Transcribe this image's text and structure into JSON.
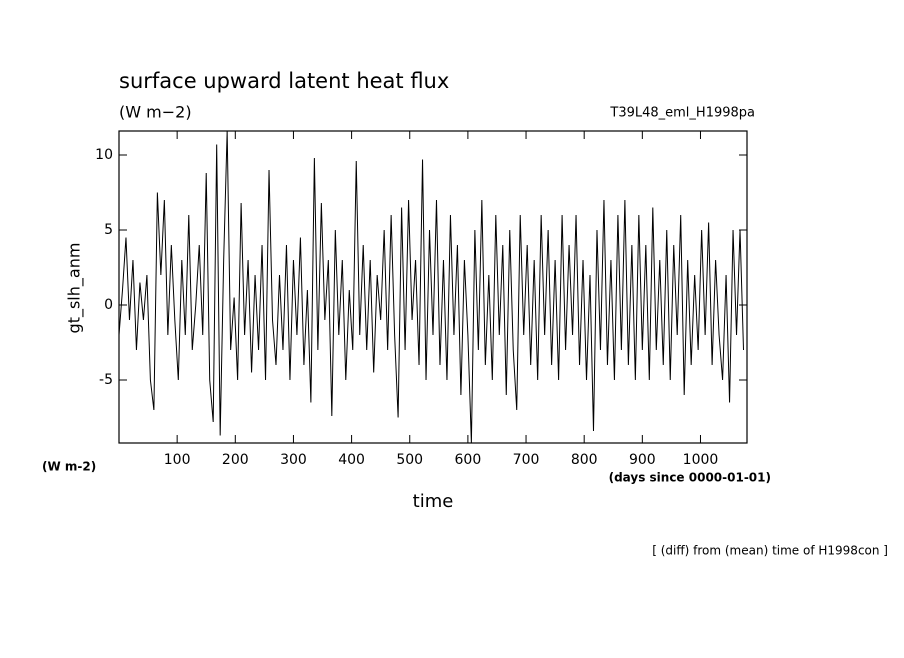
{
  "chart_data": {
    "type": "line",
    "title": "surface upward latent heat flux",
    "subtitle": "(W m−2)",
    "run_label": "T39L48_eml_H1998pa",
    "y_label": "gt_slh_anm",
    "x_label": "time",
    "y_unit": "(W m-2)",
    "x_unit": "(days since 0000-01-01)",
    "note": "[ (diff) from (mean) time of H1998con ]",
    "xlim": [
      0,
      1080
    ],
    "ylim": [
      -9.2,
      11.6
    ],
    "xticks": [
      100,
      200,
      300,
      400,
      500,
      600,
      700,
      800,
      900,
      1000
    ],
    "yticks": [
      -5,
      0,
      5,
      10
    ],
    "color": "#000000",
    "x": [
      0,
      6,
      12,
      18,
      24,
      30,
      36,
      42,
      48,
      54,
      60,
      66,
      72,
      78,
      84,
      90,
      96,
      102,
      108,
      114,
      120,
      126,
      132,
      138,
      144,
      150,
      156,
      162,
      168,
      174,
      180,
      186,
      192,
      198,
      204,
      210,
      216,
      222,
      228,
      234,
      240,
      246,
      252,
      258,
      264,
      270,
      276,
      282,
      288,
      294,
      300,
      306,
      312,
      318,
      324,
      330,
      336,
      342,
      348,
      354,
      360,
      366,
      372,
      378,
      384,
      390,
      396,
      402,
      408,
      414,
      420,
      426,
      432,
      438,
      444,
      450,
      456,
      462,
      468,
      474,
      480,
      486,
      492,
      498,
      504,
      510,
      516,
      522,
      528,
      534,
      540,
      546,
      552,
      558,
      564,
      570,
      576,
      582,
      588,
      594,
      600,
      606,
      612,
      618,
      624,
      630,
      636,
      642,
      648,
      654,
      660,
      666,
      672,
      678,
      684,
      690,
      696,
      702,
      708,
      714,
      720,
      726,
      732,
      738,
      744,
      750,
      756,
      762,
      768,
      774,
      780,
      786,
      792,
      798,
      804,
      810,
      816,
      822,
      828,
      834,
      840,
      846,
      852,
      858,
      864,
      870,
      876,
      882,
      888,
      894,
      900,
      906,
      912,
      918,
      924,
      930,
      936,
      942,
      948,
      954,
      960,
      966,
      972,
      978,
      984,
      990,
      996,
      1002,
      1008,
      1014,
      1020,
      1026,
      1032,
      1038,
      1044,
      1050,
      1056,
      1062,
      1068,
      1074
    ],
    "values": [
      -2,
      1,
      4.5,
      -1,
      3,
      -3,
      1.5,
      -1,
      2,
      -5,
      -7,
      7.5,
      2,
      7,
      -2,
      4,
      -1,
      -5,
      3,
      -2,
      6,
      -3,
      0,
      4,
      -2,
      8.8,
      -5,
      -7.8,
      10.7,
      -8.7,
      3,
      11.6,
      -3,
      0.5,
      -5,
      6.8,
      -2,
      3,
      -4.5,
      2,
      -3,
      4,
      -5,
      9,
      -1,
      -4,
      2,
      -3,
      4,
      -5,
      3,
      -2,
      4.5,
      -4,
      1,
      -6.5,
      9.8,
      -3,
      6.8,
      -1,
      3,
      -7.4,
      5,
      -2,
      3,
      -5,
      1,
      -3,
      9.6,
      -2,
      4,
      -3,
      3,
      -4.5,
      2,
      -1,
      5,
      -3,
      6,
      -2,
      -7.5,
      6.5,
      -3,
      7,
      -1,
      3,
      -4,
      9.7,
      -5,
      5,
      -2,
      7,
      -4,
      3,
      -5,
      6,
      -2,
      4,
      -6,
      3,
      -2,
      -9.2,
      5,
      -3,
      7,
      -4,
      2,
      -5,
      6,
      -2,
      4,
      -6,
      5,
      -3,
      -7,
      6,
      -2,
      4,
      -4,
      3,
      -5,
      6,
      -2,
      5,
      -4,
      3,
      -5,
      6,
      -3,
      4,
      -2,
      6,
      -4,
      3,
      -5,
      2,
      -8.4,
      5,
      -3,
      7,
      -4,
      3,
      -5,
      6,
      -3,
      7,
      -4,
      4,
      -5,
      6,
      -3,
      4,
      -5,
      6.5,
      -3,
      3,
      -4,
      5,
      -5,
      4,
      -2,
      6,
      -6,
      3,
      -4,
      2,
      -3,
      5,
      -2,
      5.5,
      -4,
      3,
      -2,
      -5,
      2,
      -6.5,
      5,
      -2,
      5,
      -3
    ]
  }
}
